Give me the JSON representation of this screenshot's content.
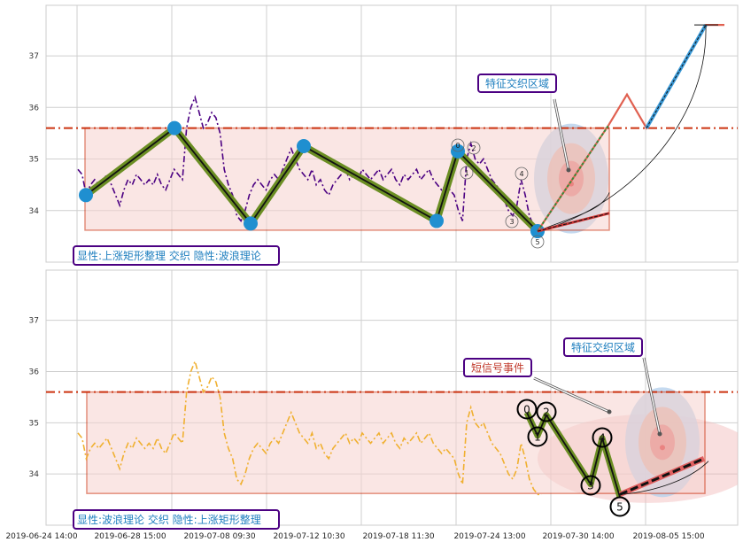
{
  "chart_data": [
    {
      "type": "line",
      "panel": "top",
      "x_range_index": [
        0,
        170
      ],
      "ylim": [
        33.0,
        37.98
      ],
      "yticks": [
        34,
        35,
        36,
        37
      ],
      "grid": true,
      "dash_line_level": 35.6,
      "rectangle": {
        "x_start": 3.5,
        "x_end": 134.5,
        "top": 35.6,
        "bottom": 33.62
      },
      "price_series": {
        "name": "",
        "color": "#4b0082",
        "values": [
          34.8,
          34.7,
          34.3,
          34.5,
          34.6,
          34.5,
          34.6,
          34.7,
          34.5,
          34.3,
          34.1,
          34.4,
          34.6,
          34.5,
          34.7,
          34.6,
          34.5,
          34.6,
          34.5,
          34.7,
          34.5,
          34.4,
          34.6,
          34.8,
          34.7,
          34.6,
          35.6,
          36.0,
          36.2,
          35.9,
          35.6,
          35.7,
          35.9,
          35.8,
          35.5,
          34.8,
          34.5,
          34.3,
          33.9,
          33.8,
          34.0,
          34.3,
          34.5,
          34.6,
          34.5,
          34.4,
          34.6,
          34.7,
          34.6,
          34.8,
          35.0,
          35.2,
          35.0,
          34.8,
          34.7,
          34.6,
          34.8,
          34.5,
          34.6,
          34.4,
          34.3,
          34.5,
          34.6,
          34.7,
          34.8,
          34.6,
          34.7,
          34.6,
          34.8,
          34.7,
          34.6,
          34.7,
          34.8,
          34.6,
          34.7,
          34.8,
          34.6,
          34.5,
          34.7,
          34.6,
          34.7,
          34.8,
          34.6,
          34.7,
          34.8,
          34.6,
          34.5,
          34.4,
          34.5,
          34.4,
          34.3,
          34.0,
          33.8,
          35.0,
          35.3,
          35.0,
          34.9,
          35.0,
          34.8,
          34.6,
          34.5,
          34.4,
          34.2,
          34.0,
          33.9,
          34.1,
          34.6,
          34.3,
          33.9,
          33.7,
          33.6,
          33.6
        ],
        "line_style": "dash-dot"
      },
      "wave_points": [
        {
          "x": 2,
          "y": 34.3
        },
        {
          "x": 21,
          "y": 35.6
        },
        {
          "x": 38,
          "y": 33.75
        },
        {
          "x": 50,
          "y": 35.25
        },
        {
          "x": 85,
          "y": 33.8
        },
        {
          "x": 92,
          "y": 35.15
        },
        {
          "x": 109,
          "y": 33.6
        }
      ],
      "wave_labels": [
        {
          "text": "0",
          "x": 92,
          "y": 35.27
        },
        {
          "text": "1",
          "x": 94,
          "y": 34.77
        },
        {
          "text": "2",
          "x": 95,
          "y": 35.22
        },
        {
          "text": "3",
          "x": 104,
          "y": 33.8
        },
        {
          "text": "4",
          "x": 106,
          "y": 34.7
        },
        {
          "text": "5",
          "x": 109,
          "y": 33.42
        }
      ],
      "projection": {
        "solid_color": "#e06050",
        "points": [
          {
            "x": 109,
            "y": 33.6
          },
          {
            "x": 136,
            "y": 35.65
          },
          {
            "x": 142,
            "y": 36.25
          },
          {
            "x": 146,
            "y": 35.6
          },
          {
            "x": 160,
            "y": 37.6
          },
          {
            "x": 166,
            "y": 37.6
          }
        ],
        "blue_segment": {
          "from_index": 3,
          "to_index": 4
        }
      },
      "feature_zone": {
        "cx": 124,
        "cy": 34.62,
        "label": "特征交织区域"
      },
      "caption": "显性:上涨矩形整理 交织 隐性:波浪理论"
    },
    {
      "type": "line",
      "panel": "bottom",
      "x_range_index": [
        0,
        170
      ],
      "ylim": [
        33.0,
        37.98
      ],
      "yticks": [
        34,
        35,
        36,
        37
      ],
      "grid": true,
      "dash_line_level": 35.6,
      "rectangle": {
        "x_start": 3.5,
        "x_end": 152,
        "top": 35.6,
        "bottom": 33.62
      },
      "price_series": {
        "name": "",
        "color": "#f0b030",
        "values": [
          34.8,
          34.7,
          34.3,
          34.5,
          34.6,
          34.5,
          34.6,
          34.7,
          34.5,
          34.3,
          34.1,
          34.4,
          34.6,
          34.5,
          34.7,
          34.6,
          34.5,
          34.6,
          34.5,
          34.7,
          34.5,
          34.4,
          34.6,
          34.8,
          34.7,
          34.6,
          35.6,
          36.0,
          36.2,
          35.9,
          35.6,
          35.7,
          35.9,
          35.8,
          35.5,
          34.8,
          34.5,
          34.3,
          33.9,
          33.8,
          34.0,
          34.3,
          34.5,
          34.6,
          34.5,
          34.4,
          34.6,
          34.7,
          34.6,
          34.8,
          35.0,
          35.2,
          35.0,
          34.8,
          34.7,
          34.6,
          34.8,
          34.5,
          34.6,
          34.4,
          34.3,
          34.5,
          34.6,
          34.7,
          34.8,
          34.6,
          34.7,
          34.6,
          34.8,
          34.7,
          34.6,
          34.7,
          34.8,
          34.6,
          34.7,
          34.8,
          34.6,
          34.5,
          34.7,
          34.6,
          34.7,
          34.8,
          34.6,
          34.7,
          34.8,
          34.6,
          34.5,
          34.4,
          34.5,
          34.4,
          34.3,
          34.0,
          33.8,
          35.0,
          35.3,
          35.0,
          34.9,
          35.0,
          34.8,
          34.6,
          34.5,
          34.4,
          34.2,
          34.0,
          33.9,
          34.1,
          34.6,
          34.3,
          33.9,
          33.7,
          33.6,
          33.6
        ],
        "line_style": "dash-dot"
      },
      "wave_points": [
        {
          "x": 113,
          "y": 35.2
        },
        {
          "x": 116,
          "y": 34.75
        },
        {
          "x": 118,
          "y": 35.15
        },
        {
          "x": 129,
          "y": 33.8
        },
        {
          "x": 132,
          "y": 34.7
        },
        {
          "x": 135,
          "y": 33.55
        }
      ],
      "wave_labels": [
        {
          "text": "0",
          "x": 113,
          "y": 35.27
        },
        {
          "text": "1",
          "x": 116,
          "y": 34.77
        },
        {
          "text": "2",
          "x": 118,
          "y": 35.22
        },
        {
          "text": "3",
          "x": 129,
          "y": 33.8
        },
        {
          "text": "4",
          "x": 132,
          "y": 34.7
        },
        {
          "text": "5",
          "x": 135,
          "y": 33.42
        }
      ],
      "breakout": {
        "from": {
          "x": 135,
          "y": 33.6
        },
        "to": {
          "x": 156,
          "y": 34.3
        }
      },
      "signal_zone": {
        "cx": 130,
        "cy": 34.3,
        "label": "短信号事件"
      },
      "feature_zone": {
        "cx": 144,
        "cy": 34.62,
        "label": "特征交织区域"
      },
      "caption": "显性:波浪理论 交织 隐性:上涨矩形整理"
    }
  ],
  "x_axis": {
    "tick_labels": [
      "2019-06-24 14:00",
      "2019-06-28 15:00",
      "2019-07-08 09:30",
      "2019-07-12 10:30",
      "2019-07-18 11:30",
      "2019-07-24 13:00",
      "2019-07-30 14:00",
      "2019-08-05 15:00"
    ],
    "tick_index": [
      0,
      20,
      40,
      60,
      80,
      100,
      120,
      140
    ]
  },
  "colors": {
    "rect_edge": "#cc3311",
    "rect_fill": "#f6d3cf",
    "dash_line": "#cc3311",
    "wave_outer": "#6b8e23",
    "wave_inner": "#111111",
    "point_fill": "#1f8fd0",
    "annot_border": "#4b0082",
    "annot_text": "#1a7fa8",
    "signal_text": "#b03020"
  }
}
